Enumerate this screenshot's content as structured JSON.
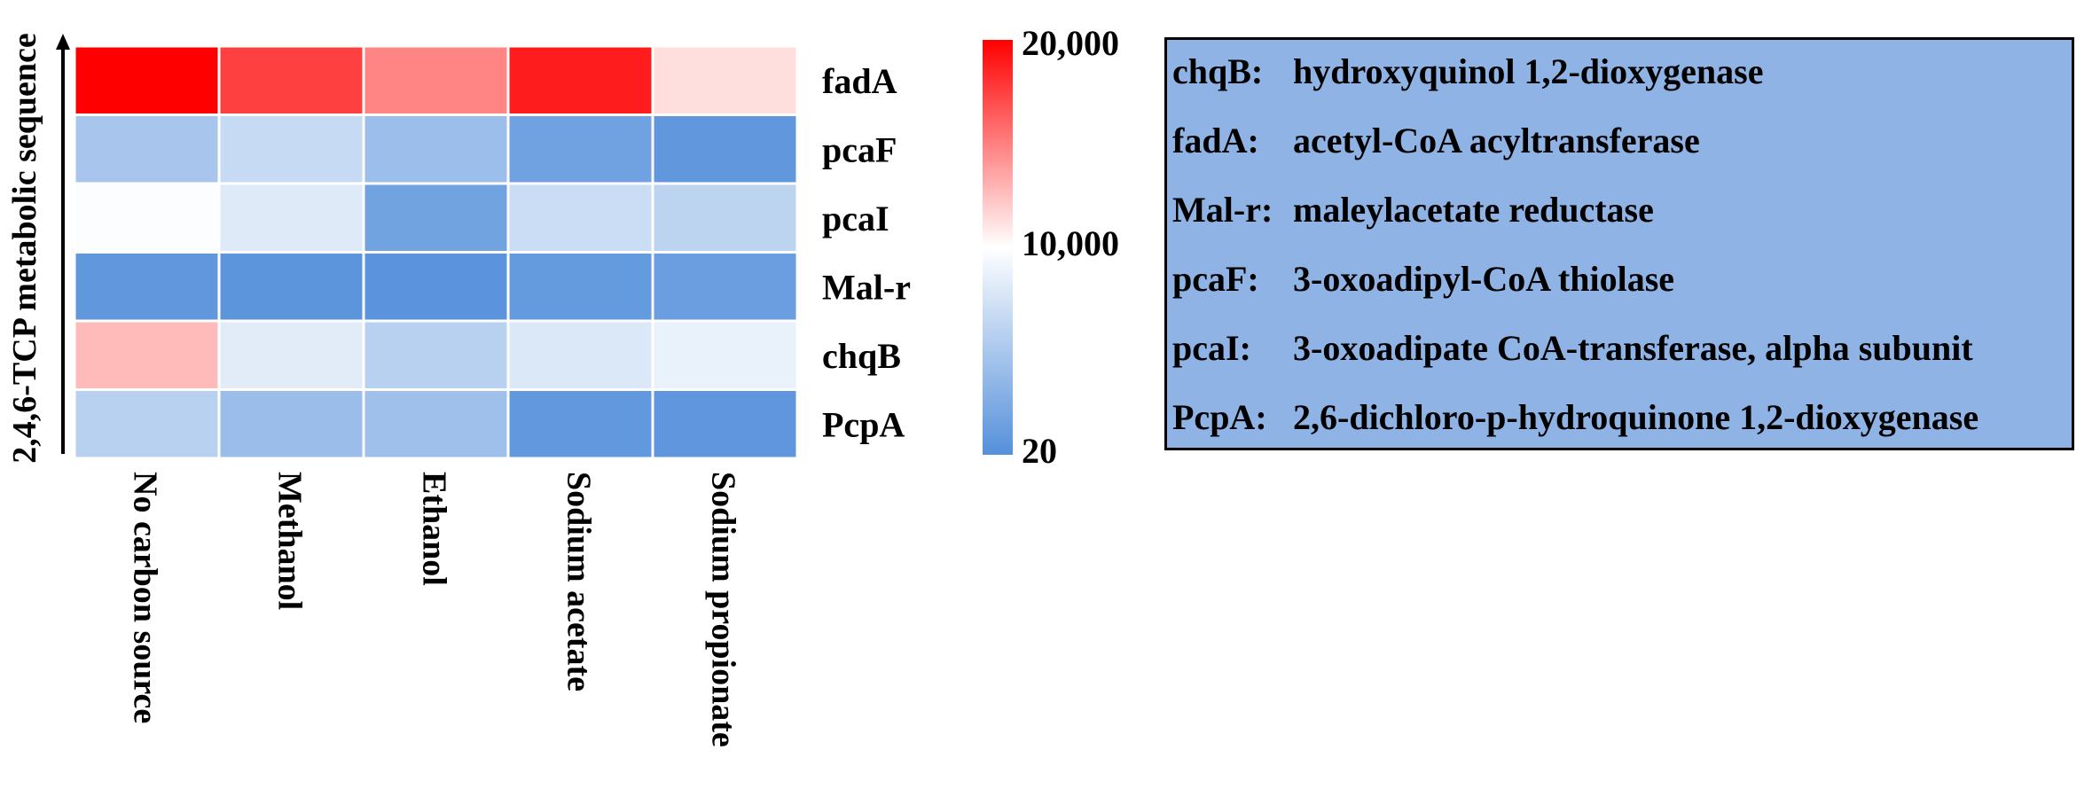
{
  "chart_data": {
    "type": "heatmap",
    "ylabel": "2,4,6-TCP metabolic sequence",
    "columns": [
      "No carbon source",
      "Methanol",
      "Ethanol",
      "Sodium acetate",
      "Sodium propionate"
    ],
    "rows": [
      "fadA",
      "pcaF",
      "pcaI",
      "Mal-r",
      "chqB",
      "PcpA"
    ],
    "values": [
      [
        20000,
        17500,
        14800,
        18900,
        11300
      ],
      [
        4900,
        6700,
        4200,
        1600,
        700
      ],
      [
        9800,
        8100,
        1700,
        6900,
        6100
      ],
      [
        700,
        500,
        400,
        900,
        1300
      ],
      [
        12700,
        8300,
        5900,
        7900,
        8700
      ],
      [
        5900,
        4100,
        4300,
        800,
        600
      ]
    ],
    "colorbar": {
      "ticks": [
        "20,000",
        "10,000",
        "20"
      ],
      "min": 20,
      "mid": 10000,
      "max": 20000,
      "colors": {
        "low": "#5590db",
        "mid": "#ffffff",
        "high": "#ff0000"
      }
    }
  },
  "gene_legend": [
    {
      "code": "chqB:",
      "description": "hydroxyquinol 1,2-dioxygenase"
    },
    {
      "code": "fadA:",
      "description": "acetyl-CoA acyltransferase"
    },
    {
      "code": "Mal-r:",
      "description": "maleylacetate reductase"
    },
    {
      "code": "pcaF:",
      "description": "3-oxoadipyl-CoA thiolase"
    },
    {
      "code": "pcaI:",
      "description": "3-oxoadipate CoA-transferase, alpha subunit"
    },
    {
      "code": "PcpA:",
      "description": "2,6-dichloro-p-hydroquinone 1,2-dioxygenase"
    }
  ]
}
